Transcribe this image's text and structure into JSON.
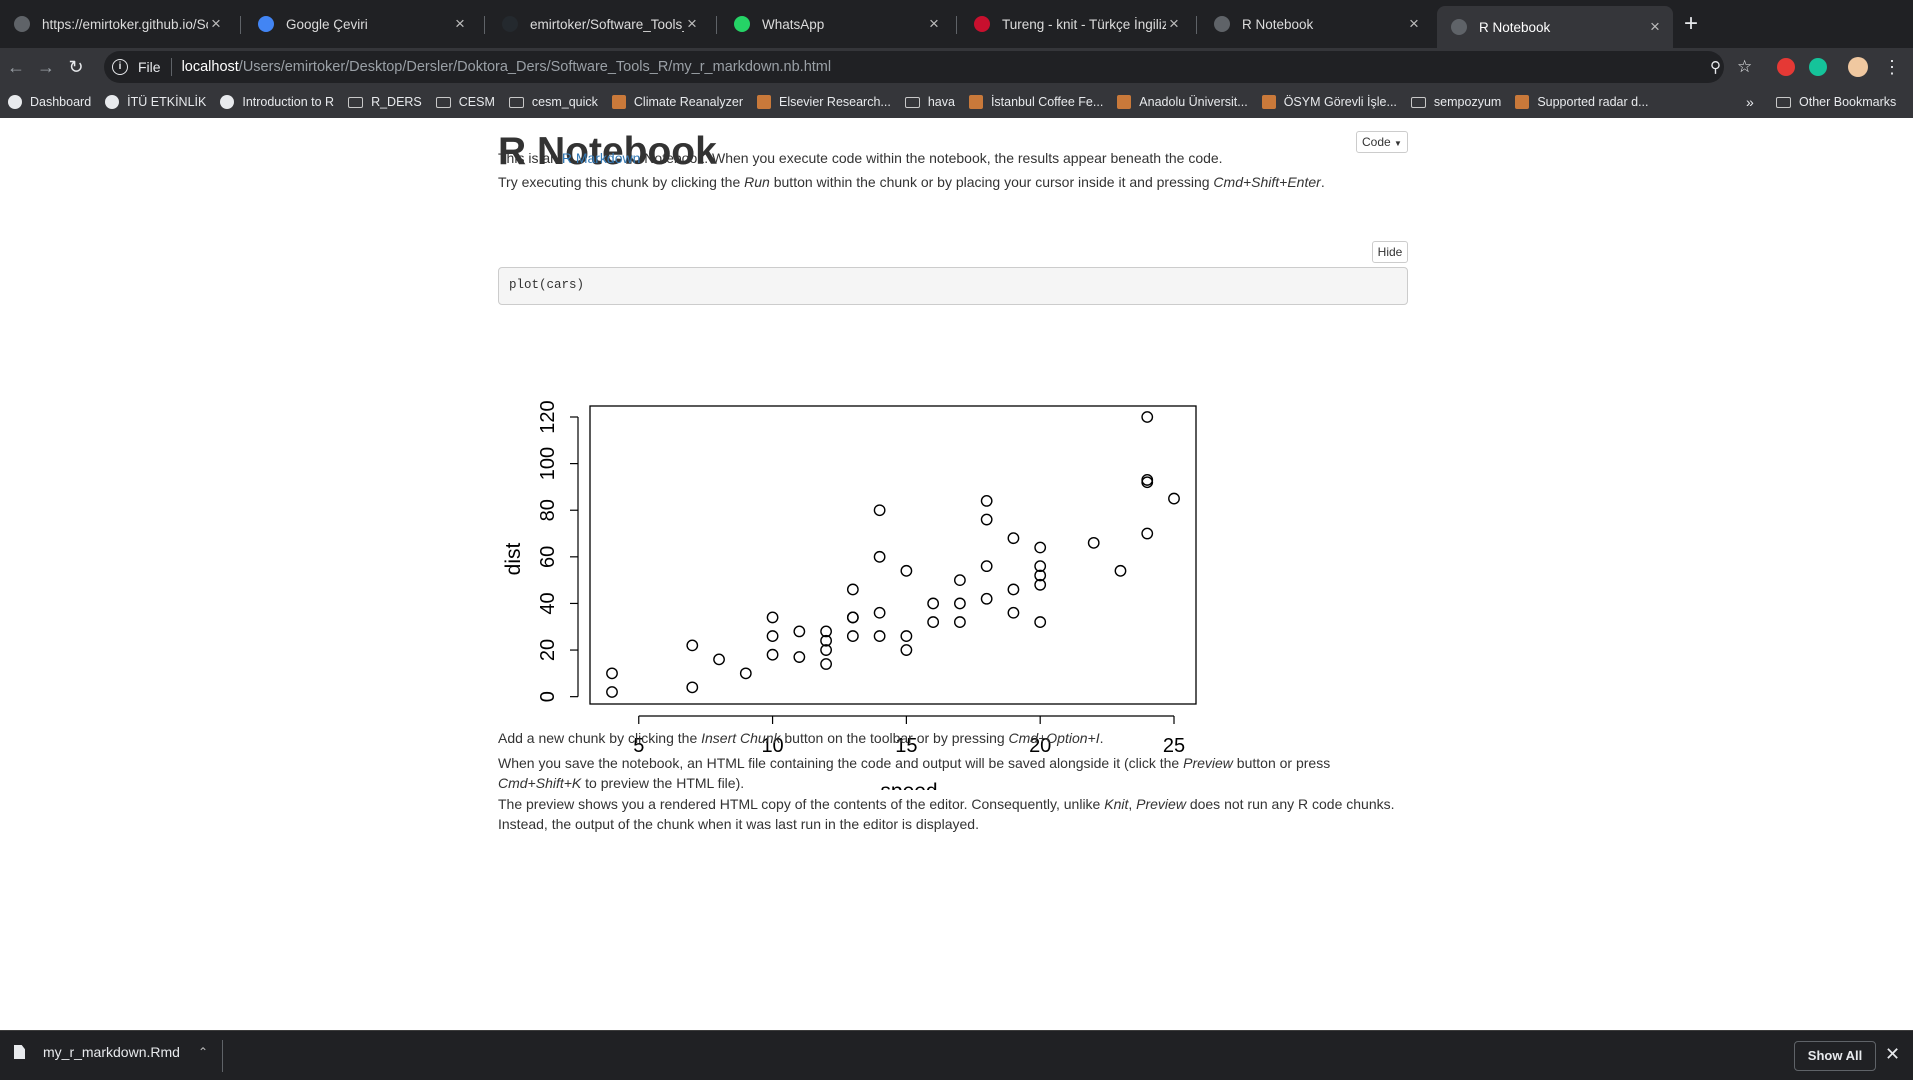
{
  "tabs": [
    {
      "title": "https://emirtoker.github.io/Soft",
      "favicon_color": "#5f6368"
    },
    {
      "title": "Google Çeviri",
      "favicon_color": "#4285f4"
    },
    {
      "title": "emirtoker/Software_Tools_R_G",
      "favicon_color": "#24292e"
    },
    {
      "title": "WhatsApp",
      "favicon_color": "#25d366"
    },
    {
      "title": "Tureng - knit - Türkçe İngilizce",
      "favicon_color": "#c8102e"
    },
    {
      "title": "R Notebook",
      "favicon_color": "#5f6368"
    },
    {
      "title": "R Notebook",
      "favicon_color": "#5f6368",
      "active": true
    }
  ],
  "toolbar": {
    "scheme": "File",
    "host": "localhost",
    "path": "/Users/emirtoker/Desktop/Dersler/Doktora_Ders/Software_Tools_R/my_r_markdown.nb.html"
  },
  "bookmarks": [
    {
      "label": "Dashboard",
      "icon": "globe-icon"
    },
    {
      "label": "İTÜ ETKİNLİK",
      "icon": "globe-icon"
    },
    {
      "label": "Introduction to R",
      "icon": "globe-icon"
    },
    {
      "label": "R_DERS",
      "icon": "folder-icon"
    },
    {
      "label": "CESM",
      "icon": "folder-icon"
    },
    {
      "label": "cesm_quick",
      "icon": "folder-icon"
    },
    {
      "label": "Climate Reanalyzer",
      "icon": "site-icon"
    },
    {
      "label": "Elsevier Research...",
      "icon": "site-icon"
    },
    {
      "label": "hava",
      "icon": "folder-icon"
    },
    {
      "label": "İstanbul Coffee Fe...",
      "icon": "site-icon"
    },
    {
      "label": "Anadolu Üniversit...",
      "icon": "site-icon"
    },
    {
      "label": "ÖSYM Görevli İşle...",
      "icon": "site-icon"
    },
    {
      "label": "sempozyum",
      "icon": "folder-icon"
    },
    {
      "label": "Supported radar d...",
      "icon": "site-icon"
    }
  ],
  "bookmarks_more": "»",
  "bookmarks_other": "Other Bookmarks",
  "page": {
    "title": "R Notebook",
    "code_button": "Code",
    "hide_button": "Hide",
    "para1_prefix": "This is an ",
    "para1_link": "R Markdown",
    "para1_suffix": " Notebook. When you execute code within the notebook, the results appear beneath the code.",
    "para2_a": "Try executing this chunk by clicking the ",
    "para2_b": "Run",
    "para2_c": " button within the chunk or by placing your cursor inside it and pressing ",
    "para2_d": "Cmd+Shift+Enter",
    "para2_e": ".",
    "code": "plot(cars)",
    "para3_a": "Add a new chunk by clicking the ",
    "para3_b": "Insert Chunk",
    "para3_c": " button on the toolbar or by pressing ",
    "para3_d": "Cmd+Option+I",
    "para3_e": ".",
    "para4_a": "When you save the notebook, an HTML file containing the code and output will be saved alongside it (click the ",
    "para4_b": "Preview",
    "para4_c": " button or press",
    "para4_d": "Cmd+Shift+K",
    "para4_e": " to preview the HTML file).",
    "para5_a": "The preview shows you a rendered HTML copy of the contents of the editor. Consequently, unlike ",
    "para5_b": "Knit",
    "para5_c": ", ",
    "para5_d": "Preview",
    "para5_e": " does not run any R code chunks.",
    "para5_f": "Instead, the output of the chunk when it was last run in the editor is displayed."
  },
  "download": {
    "filename": "my_r_markdown.Rmd",
    "show_all": "Show All"
  },
  "chart_data": {
    "type": "scatter",
    "title": "",
    "xlabel": "speed",
    "ylabel": "dist",
    "xlim": [
      4,
      25
    ],
    "ylim": [
      2,
      120
    ],
    "xticks": [
      5,
      10,
      15,
      20,
      25
    ],
    "yticks": [
      0,
      20,
      40,
      60,
      80,
      100,
      120
    ],
    "points": [
      [
        4,
        2
      ],
      [
        4,
        10
      ],
      [
        7,
        4
      ],
      [
        7,
        22
      ],
      [
        8,
        16
      ],
      [
        9,
        10
      ],
      [
        10,
        18
      ],
      [
        10,
        26
      ],
      [
        10,
        34
      ],
      [
        11,
        17
      ],
      [
        11,
        28
      ],
      [
        12,
        14
      ],
      [
        12,
        20
      ],
      [
        12,
        24
      ],
      [
        12,
        28
      ],
      [
        13,
        26
      ],
      [
        13,
        34
      ],
      [
        13,
        34
      ],
      [
        13,
        46
      ],
      [
        14,
        26
      ],
      [
        14,
        36
      ],
      [
        14,
        60
      ],
      [
        14,
        80
      ],
      [
        15,
        20
      ],
      [
        15,
        26
      ],
      [
        15,
        54
      ],
      [
        16,
        32
      ],
      [
        16,
        40
      ],
      [
        17,
        32
      ],
      [
        17,
        40
      ],
      [
        17,
        50
      ],
      [
        18,
        42
      ],
      [
        18,
        56
      ],
      [
        18,
        76
      ],
      [
        18,
        84
      ],
      [
        19,
        36
      ],
      [
        19,
        46
      ],
      [
        19,
        68
      ],
      [
        20,
        32
      ],
      [
        20,
        48
      ],
      [
        20,
        52
      ],
      [
        20,
        56
      ],
      [
        20,
        64
      ],
      [
        22,
        66
      ],
      [
        23,
        54
      ],
      [
        24,
        70
      ],
      [
        24,
        92
      ],
      [
        24,
        93
      ],
      [
        24,
        120
      ],
      [
        25,
        85
      ]
    ]
  }
}
